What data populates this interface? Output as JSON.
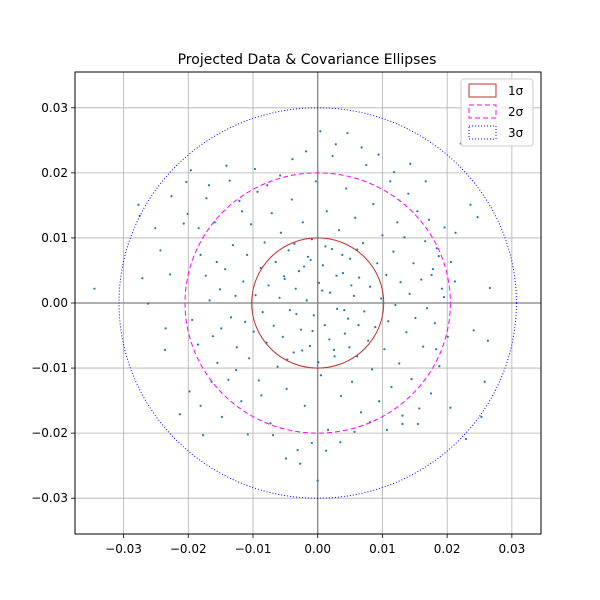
{
  "chart_data": {
    "type": "scatter",
    "title": "Projected Data & Covariance Ellipses",
    "xlabel": "",
    "ylabel": "",
    "xlim": [
      -0.0375,
      0.0345
    ],
    "ylim": [
      -0.0355,
      0.0355
    ],
    "xticks": [
      -0.03,
      -0.02,
      -0.01,
      0.0,
      0.01,
      0.02,
      0.03
    ],
    "yticks": [
      -0.03,
      -0.02,
      -0.01,
      0.0,
      0.01,
      0.02,
      0.03
    ],
    "xtick_labels": [
      "−0.03",
      "−0.02",
      "−0.01",
      "0.00",
      "0.01",
      "0.02",
      "0.03"
    ],
    "ytick_labels": [
      "−0.03",
      "−0.02",
      "−0.01",
      "0.00",
      "0.01",
      "0.02",
      "0.03"
    ],
    "grid": true,
    "legend_position": "top-right",
    "ellipses": [
      {
        "label": "1σ",
        "radius_x": 0.0102,
        "radius_y": 0.01,
        "color": "#c0302e",
        "style": "solid"
      },
      {
        "label": "2σ",
        "radius_x": 0.0205,
        "radius_y": 0.02,
        "color": "#ff00ff",
        "style": "dashed"
      },
      {
        "label": "3σ",
        "radius_x": 0.0307,
        "radius_y": 0.03,
        "color": "#0000ff",
        "style": "dotted"
      }
    ],
    "points_color": "#1f77b4",
    "points": [
      [
        -0.0345,
        0.0022
      ],
      [
        -0.0277,
        0.0151
      ],
      [
        -0.0275,
        0.0134
      ],
      [
        -0.0271,
        0.0038
      ],
      [
        -0.0262,
        -0.0001
      ],
      [
        -0.0251,
        0.0115
      ],
      [
        -0.0243,
        0.0081
      ],
      [
        -0.0235,
        -0.0039
      ],
      [
        -0.0228,
        0.0044
      ],
      [
        -0.0213,
        -0.0171
      ],
      [
        -0.0207,
        0.0122
      ],
      [
        -0.0203,
        0.0186
      ],
      [
        -0.0201,
        0.0137
      ],
      [
        -0.0198,
        -0.0136
      ],
      [
        -0.0194,
        -0.0026
      ],
      [
        -0.0185,
        -0.0064
      ],
      [
        -0.0184,
        0.0115
      ],
      [
        -0.0181,
        0.0074
      ],
      [
        -0.0177,
        -0.0203
      ],
      [
        -0.0173,
        0.0042
      ],
      [
        -0.0168,
        0.0181
      ],
      [
        -0.0167,
        0.0004
      ],
      [
        -0.0162,
        -0.0051
      ],
      [
        -0.0159,
        0.0124
      ],
      [
        -0.0155,
        -0.0092
      ],
      [
        -0.0151,
        0.0021
      ],
      [
        -0.0148,
        -0.0175
      ],
      [
        -0.0143,
        0.0052
      ],
      [
        -0.0141,
        0.0211
      ],
      [
        -0.0138,
        -0.0118
      ],
      [
        -0.0134,
        -0.0022
      ],
      [
        -0.0131,
        0.0089
      ],
      [
        -0.0127,
        0.0011
      ],
      [
        -0.0125,
        -0.0068
      ],
      [
        -0.0121,
        0.0157
      ],
      [
        -0.0118,
        -0.0151
      ],
      [
        -0.0115,
        0.0033
      ],
      [
        -0.0112,
        -0.0029
      ],
      [
        -0.0109,
        0.0074
      ],
      [
        -0.0106,
        -0.0085
      ],
      [
        -0.0103,
        0.0121
      ],
      [
        -0.0099,
        -0.0044
      ],
      [
        -0.0096,
        0.0012
      ],
      [
        -0.0093,
        0.0171
      ],
      [
        -0.0091,
        -0.0119
      ],
      [
        -0.0088,
        0.0054
      ],
      [
        -0.0085,
        -0.0014
      ],
      [
        -0.0082,
        0.0093
      ],
      [
        -0.0079,
        -0.0061
      ],
      [
        -0.0076,
        0.0027
      ],
      [
        -0.0073,
        -0.0185
      ],
      [
        -0.0071,
        0.0138
      ],
      [
        -0.0068,
        -0.0035
      ],
      [
        -0.0065,
        0.0063
      ],
      [
        -0.0062,
        -0.0098
      ],
      [
        -0.0059,
        0.0008
      ],
      [
        -0.0057,
        0.0108
      ],
      [
        -0.0054,
        -0.0052
      ],
      [
        -0.0051,
        0.0037
      ],
      [
        -0.0048,
        -0.0132
      ],
      [
        -0.0045,
        0.0081
      ],
      [
        -0.0043,
        -0.0011
      ],
      [
        -0.004,
        0.0159
      ],
      [
        -0.0037,
        -0.0076
      ],
      [
        -0.0034,
        0.0022
      ],
      [
        -0.0031,
        -0.0226
      ],
      [
        -0.0029,
        0.0049
      ],
      [
        -0.0026,
        -0.0041
      ],
      [
        -0.0023,
        0.0124
      ],
      [
        -0.002,
        -0.0158
      ],
      [
        -0.0017,
        0.0004
      ],
      [
        -0.0015,
        0.0071
      ],
      [
        -0.0012,
        -0.0066
      ],
      [
        -0.0009,
        0.0098
      ],
      [
        -0.0006,
        -0.0019
      ],
      [
        -0.0003,
        0.0187
      ],
      [
        0.0,
        -0.0273
      ],
      [
        0.0002,
        0.0031
      ],
      [
        0.0005,
        -0.0111
      ],
      [
        0.0008,
        0.0058
      ],
      [
        0.0011,
        -0.0034
      ],
      [
        0.0014,
        0.0141
      ],
      [
        0.0016,
        -0.0195
      ],
      [
        0.0019,
        0.0016
      ],
      [
        0.0022,
        0.0083
      ],
      [
        0.0025,
        -0.0072
      ],
      [
        0.0028,
        0.0244
      ],
      [
        0.003,
        -0.0009
      ],
      [
        0.0033,
        0.0112
      ],
      [
        0.0036,
        -0.0143
      ],
      [
        0.0039,
        0.0046
      ],
      [
        0.0042,
        -0.0047
      ],
      [
        0.0044,
        0.0176
      ],
      [
        0.0047,
        -0.0024
      ],
      [
        0.005,
        0.0068
      ],
      [
        0.0053,
        -0.0121
      ],
      [
        0.0056,
        0.0011
      ],
      [
        0.0058,
        0.0131
      ],
      [
        0.0061,
        -0.0082
      ],
      [
        0.0064,
        0.0039
      ],
      [
        0.0067,
        -0.0168
      ],
      [
        0.007,
        0.0092
      ],
      [
        0.0072,
        -0.0013
      ],
      [
        0.0075,
        0.0212
      ],
      [
        0.0078,
        -0.0058
      ],
      [
        0.0081,
        0.0025
      ],
      [
        0.0084,
        -0.0102
      ],
      [
        0.0086,
        0.0152
      ],
      [
        0.0089,
        -0.0037
      ],
      [
        0.0092,
        0.0061
      ],
      [
        0.0095,
        -0.0151
      ],
      [
        0.0098,
        0.0007
      ],
      [
        0.01,
        0.0104
      ],
      [
        0.0103,
        -0.0071
      ],
      [
        0.0106,
        0.0043
      ],
      [
        0.0109,
        -0.0028
      ],
      [
        0.0112,
        0.0187
      ],
      [
        0.0114,
        -0.0129
      ],
      [
        0.0117,
        0.0079
      ],
      [
        0.012,
        -0.0003
      ],
      [
        0.0123,
        0.0124
      ],
      [
        0.0126,
        -0.0093
      ],
      [
        0.0128,
        0.0032
      ],
      [
        0.0131,
        -0.0186
      ],
      [
        0.0134,
        0.0101
      ],
      [
        0.0137,
        -0.0045
      ],
      [
        0.014,
        0.0168
      ],
      [
        0.0142,
        0.0014
      ],
      [
        0.0145,
        -0.0117
      ],
      [
        0.0148,
        0.0061
      ],
      [
        0.0151,
        -0.0023
      ],
      [
        0.0154,
        0.0141
      ],
      [
        0.0157,
        -0.0162
      ],
      [
        0.016,
        0.0036
      ],
      [
        0.0163,
        -0.0067
      ],
      [
        0.0166,
        0.0095
      ],
      [
        0.0169,
        -0.0008
      ],
      [
        0.0172,
        0.0128
      ],
      [
        0.0175,
        -0.0139
      ],
      [
        0.0178,
        0.0052
      ],
      [
        0.0181,
        -0.0031
      ],
      [
        0.0184,
        0.0084
      ],
      [
        0.0188,
        -0.0097
      ],
      [
        0.0192,
        0.0022
      ],
      [
        0.0196,
        0.0116
      ],
      [
        0.0201,
        -0.0052
      ],
      [
        0.0206,
        0.0063
      ],
      [
        0.0213,
        0.0108
      ],
      [
        0.0221,
        0.0245
      ],
      [
        0.0229,
        -0.0209
      ],
      [
        0.0236,
        0.0151
      ],
      [
        0.0241,
        -0.0042
      ],
      [
        0.0247,
        0.0132
      ],
      [
        0.0253,
        -0.0175
      ],
      [
        0.0258,
        -0.0121
      ],
      [
        0.0263,
        -0.0058
      ],
      [
        0.0266,
        0.0023
      ],
      [
        0.0205,
        -0.0161
      ],
      [
        0.0212,
        0.0033
      ],
      [
        0.0187,
        0.0072
      ],
      [
        -0.0226,
        0.0164
      ],
      [
        -0.0236,
        -0.0072
      ],
      [
        -0.0196,
        0.0204
      ],
      [
        -0.0181,
        -0.0158
      ],
      [
        -0.0172,
        0.0161
      ],
      [
        -0.0164,
        -0.0121
      ],
      [
        -0.0156,
        0.0063
      ],
      [
        -0.0149,
        -0.0039
      ],
      [
        -0.0136,
        0.0188
      ],
      [
        -0.0126,
        -0.0103
      ],
      [
        -0.0117,
        0.0141
      ],
      [
        -0.0108,
        -0.0202
      ],
      [
        -0.0097,
        0.0206
      ],
      [
        -0.0087,
        -0.0142
      ],
      [
        -0.0078,
        0.0181
      ],
      [
        -0.0069,
        -0.0203
      ],
      [
        -0.0058,
        0.0196
      ],
      [
        -0.0049,
        -0.0239
      ],
      [
        -0.0039,
        0.0221
      ],
      [
        -0.0027,
        -0.0247
      ],
      [
        -0.0018,
        0.0233
      ],
      [
        -0.0009,
        -0.0215
      ],
      [
        0.0004,
        0.0264
      ],
      [
        0.0013,
        -0.0227
      ],
      [
        0.0023,
        0.0226
      ],
      [
        0.0035,
        -0.0214
      ],
      [
        0.0046,
        0.0261
      ],
      [
        0.0057,
        -0.0198
      ],
      [
        0.0068,
        0.0239
      ],
      [
        0.0081,
        -0.0183
      ],
      [
        0.0094,
        0.0228
      ],
      [
        0.0107,
        -0.0195
      ],
      [
        0.0118,
        0.0201
      ],
      [
        0.0131,
        -0.0173
      ],
      [
        0.0143,
        0.0214
      ],
      [
        0.0155,
        -0.0186
      ],
      [
        0.0167,
        0.0187
      ],
      [
        0.0176,
        0.0043
      ],
      [
        0.0183,
        -0.0071
      ],
      [
        0.0195,
        0.0009
      ],
      [
        -0.0052,
        0.0041
      ],
      [
        -0.0033,
        -0.0017
      ],
      [
        -0.0021,
        0.0056
      ],
      [
        -0.0008,
        -0.0043
      ],
      [
        0.0007,
        0.0019
      ],
      [
        0.0018,
        -0.0056
      ],
      [
        0.0029,
        0.0042
      ],
      [
        0.0041,
        -0.0011
      ],
      [
        0.0052,
        0.0027
      ],
      [
        0.0063,
        -0.0034
      ],
      [
        -0.0047,
        -0.0087
      ],
      [
        -0.0036,
        0.0091
      ],
      [
        -0.0024,
        -0.0073
      ],
      [
        -0.0011,
        0.0066
      ],
      [
        0.0001,
        -0.0091
      ],
      [
        0.0012,
        0.0087
      ],
      [
        0.0026,
        -0.0082
      ],
      [
        0.0038,
        0.0074
      ],
      [
        0.0049,
        -0.0068
      ],
      [
        0.0061,
        0.0082
      ]
    ]
  },
  "legend": {
    "items": [
      {
        "label": "1σ",
        "color": "#c0302e",
        "style": "solid"
      },
      {
        "label": "2σ",
        "color": "#ff00ff",
        "style": "dashed"
      },
      {
        "label": "3σ",
        "color": "#0000ff",
        "style": "dotted"
      }
    ]
  }
}
